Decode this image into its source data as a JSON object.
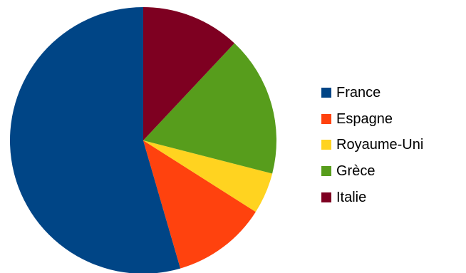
{
  "chart_data": {
    "type": "pie",
    "title": "",
    "categories": [
      "France",
      "Espagne",
      "Royaume-Uni",
      "Grèce",
      "Italie"
    ],
    "values": [
      54.5,
      11.5,
      5.0,
      17.0,
      12.0
    ],
    "colors": [
      "#004586",
      "#ff420e",
      "#ffd320",
      "#579d1c",
      "#7e0021"
    ],
    "start_angle_deg": 0,
    "direction": "counterclockwise",
    "legend_position": "right"
  }
}
